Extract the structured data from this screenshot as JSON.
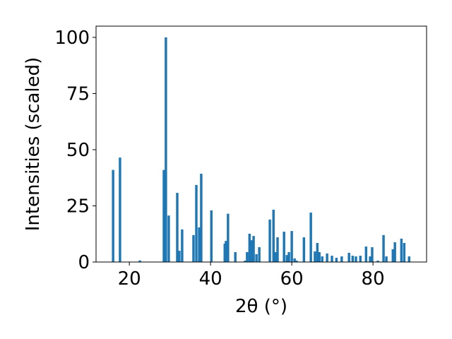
{
  "chart_data": {
    "type": "bar",
    "xlabel": "2θ (°)",
    "ylabel": "Intensities (scaled)",
    "x": [
      16.0,
      17.7,
      22.6,
      28.5,
      29.0,
      29.7,
      31.8,
      32.3,
      33.0,
      35.8,
      36.5,
      37.2,
      37.7,
      40.2,
      43.5,
      43.8,
      44.3,
      46.1,
      48.5,
      49.0,
      49.6,
      50.1,
      50.6,
      51.3,
      52.0,
      54.6,
      55.5,
      56.0,
      56.5,
      58.1,
      58.8,
      59.3,
      60.0,
      60.7,
      61.2,
      63.0,
      64.7,
      65.7,
      66.3,
      66.8,
      67.5,
      68.7,
      69.9,
      71.0,
      72.3,
      74.1,
      75.0,
      75.8,
      76.9,
      78.3,
      79.3,
      79.8,
      81.2,
      82.6,
      83.3,
      84.9,
      85.4,
      87.0,
      87.7,
      88.9
    ],
    "values": [
      41,
      46.5,
      0.7,
      41,
      100,
      20.7,
      30.8,
      5,
      14.5,
      12,
      34.3,
      15.4,
      39.3,
      23,
      8.2,
      9.4,
      21.5,
      4.4,
      0.6,
      4.4,
      12.6,
      9.7,
      11.6,
      3.5,
      6.6,
      18.9,
      23.3,
      4.4,
      11,
      13.5,
      3.1,
      4.4,
      13.8,
      1.6,
      0.6,
      11,
      22,
      4.7,
      8.5,
      4.4,
      2.5,
      3.8,
      2.8,
      1.9,
      2.5,
      4.1,
      2.8,
      2.5,
      2.8,
      6.9,
      2.5,
      6.6,
      0.6,
      12,
      2.5,
      5.7,
      8.8,
      10.4,
      8.5,
      2.5
    ],
    "color": "#1f77b4",
    "xlim": [
      11.8,
      93.2
    ],
    "xticks": [
      20,
      40,
      60,
      80
    ],
    "ylim": [
      0,
      105
    ],
    "yticks": [
      0,
      25,
      50,
      75,
      100
    ]
  }
}
